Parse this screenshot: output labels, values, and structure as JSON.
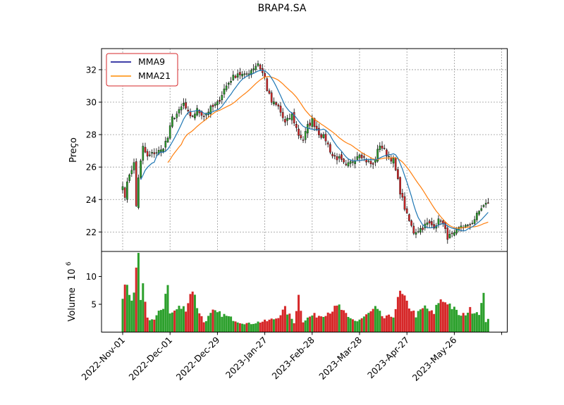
{
  "chart_data": {
    "type": "candlestick",
    "title": "BRAP4.SA",
    "price_panel": {
      "ylabel": "Preço",
      "ylim": [
        20.8,
        33.3
      ],
      "yticks": [
        22,
        24,
        26,
        28,
        30,
        32
      ],
      "grid": true,
      "legend": {
        "placement": "top-left",
        "entries": [
          "MMA9",
          "MMA21"
        ]
      }
    },
    "volume_panel": {
      "ylabel": "Volume",
      "ylabel_exponent": "10",
      "ylabel_exponent_power": "6",
      "ylim": [
        0,
        14.5
      ],
      "yticks": [
        5,
        10
      ]
    },
    "xticks": [
      {
        "label": "2022-Nov-01",
        "index": 0
      },
      {
        "label": "2022-Dec-01",
        "index": 21
      },
      {
        "label": "2022-Dec-29",
        "index": 42
      },
      {
        "label": "2023-Jan-27",
        "index": 63
      },
      {
        "label": "2023-Feb-28",
        "index": 84
      },
      {
        "label": "2023-Mar-28",
        "index": 105
      },
      {
        "label": "2023-Apr-27",
        "index": 126
      },
      {
        "label": "2023-May-26",
        "index": 147
      },
      {
        "label": "",
        "index": 168
      }
    ],
    "anchors": [
      [
        0,
        24.8
      ],
      [
        1,
        24.3
      ],
      [
        3,
        25.6
      ],
      [
        5,
        26.2
      ],
      [
        6,
        23.6
      ],
      [
        7,
        25.4
      ],
      [
        9,
        27.2
      ],
      [
        11,
        26.6
      ],
      [
        14,
        26.9
      ],
      [
        17,
        27.0
      ],
      [
        20,
        27.8
      ],
      [
        22,
        29.0
      ],
      [
        25,
        29.4
      ],
      [
        27,
        29.9
      ],
      [
        30,
        29.0
      ],
      [
        33,
        29.5
      ],
      [
        36,
        29.2
      ],
      [
        39,
        29.6
      ],
      [
        42,
        29.9
      ],
      [
        45,
        30.8
      ],
      [
        48,
        31.4
      ],
      [
        51,
        31.8
      ],
      [
        54,
        31.6
      ],
      [
        57,
        32.0
      ],
      [
        60,
        32.4
      ],
      [
        63,
        31.5
      ],
      [
        64,
        30.8
      ],
      [
        66,
        30.0
      ],
      [
        69,
        29.7
      ],
      [
        72,
        28.7
      ],
      [
        75,
        29.2
      ],
      [
        78,
        28.0
      ],
      [
        80,
        27.7
      ],
      [
        82,
        28.5
      ],
      [
        84,
        28.9
      ],
      [
        87,
        28.1
      ],
      [
        90,
        27.7
      ],
      [
        93,
        26.7
      ],
      [
        96,
        26.5
      ],
      [
        99,
        26.0
      ],
      [
        102,
        26.4
      ],
      [
        105,
        26.9
      ],
      [
        108,
        26.4
      ],
      [
        111,
        26.1
      ],
      [
        114,
        27.4
      ],
      [
        117,
        26.8
      ],
      [
        120,
        26.4
      ],
      [
        123,
        24.5
      ],
      [
        126,
        23.0
      ],
      [
        129,
        22.0
      ],
      [
        132,
        22.2
      ],
      [
        135,
        22.5
      ],
      [
        138,
        22.4
      ],
      [
        141,
        22.8
      ],
      [
        144,
        21.7
      ],
      [
        147,
        21.8
      ],
      [
        150,
        22.4
      ],
      [
        153,
        22.3
      ],
      [
        156,
        22.8
      ],
      [
        159,
        23.5
      ],
      [
        162,
        23.8
      ]
    ],
    "volume_anchors": [
      [
        0,
        6.3
      ],
      [
        1,
        8.0
      ],
      [
        2,
        8.7
      ],
      [
        4,
        6.0
      ],
      [
        5,
        6.2
      ],
      [
        6,
        10.1
      ],
      [
        7,
        13.7
      ],
      [
        8,
        5.2
      ],
      [
        9,
        7.8
      ],
      [
        10,
        6.0
      ],
      [
        11,
        2.5
      ],
      [
        14,
        2.2
      ],
      [
        18,
        4.6
      ],
      [
        20,
        9.4
      ],
      [
        21,
        3.2
      ],
      [
        25,
        4.4
      ],
      [
        28,
        4.3
      ],
      [
        31,
        8.0
      ],
      [
        33,
        4.6
      ],
      [
        36,
        1.8
      ],
      [
        40,
        3.6
      ],
      [
        44,
        3.2
      ],
      [
        48,
        2.5
      ],
      [
        52,
        1.8
      ],
      [
        56,
        1.5
      ],
      [
        60,
        1.8
      ],
      [
        64,
        2.0
      ],
      [
        68,
        2.5
      ],
      [
        72,
        4.1
      ],
      [
        76,
        1.8
      ],
      [
        78,
        6.5
      ],
      [
        80,
        2.0
      ],
      [
        84,
        3.0
      ],
      [
        88,
        3.0
      ],
      [
        92,
        3.8
      ],
      [
        96,
        4.6
      ],
      [
        100,
        2.5
      ],
      [
        104,
        2.0
      ],
      [
        108,
        3.0
      ],
      [
        112,
        4.2
      ],
      [
        116,
        2.5
      ],
      [
        120,
        3.0
      ],
      [
        123,
        7.0
      ],
      [
        126,
        5.2
      ],
      [
        130,
        3.0
      ],
      [
        134,
        4.5
      ],
      [
        138,
        3.2
      ],
      [
        140,
        5.6
      ],
      [
        144,
        5.5
      ],
      [
        146,
        4.5
      ],
      [
        150,
        2.8
      ],
      [
        154,
        4.0
      ],
      [
        158,
        3.6
      ],
      [
        160,
        6.3
      ],
      [
        161,
        2.0
      ],
      [
        162,
        2.6
      ]
    ],
    "series": [
      {
        "name": "MMA9",
        "period": 9,
        "color": "#1f77b4"
      },
      {
        "name": "MMA21",
        "period": 21,
        "color": "#ff7f0e"
      }
    ],
    "colors": {
      "up": "#2ca02c",
      "down": "#d62728",
      "legend_frame": "#d62728",
      "mma9_legend": "#00008b",
      "mma21_legend": "#ff8c00"
    }
  }
}
